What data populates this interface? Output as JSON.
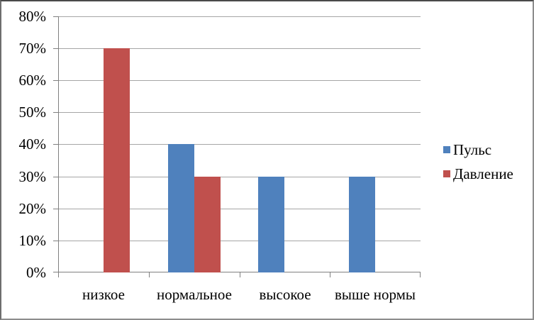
{
  "chart_data": {
    "type": "bar",
    "categories": [
      "низкое",
      "нормальное",
      "высокое",
      "выше нормы"
    ],
    "series": [
      {
        "name": "Пульс",
        "color": "#4F81BD",
        "values": [
          0,
          40,
          30,
          30
        ]
      },
      {
        "name": "Давление",
        "color": "#C0504D",
        "values": [
          70,
          30,
          0,
          0
        ]
      }
    ],
    "title": "",
    "xlabel": "",
    "ylabel": "",
    "ylim": [
      0,
      80
    ],
    "ytick_step": 10,
    "ytick_labels": [
      "0%",
      "10%",
      "20%",
      "30%",
      "40%",
      "50%",
      "60%",
      "70%",
      "80%"
    ],
    "grid": true,
    "legend_position": "right"
  },
  "colors": {
    "background": "#FFFFFF",
    "frame_border": "#8C8C8C",
    "gridline": "#A6A6A6",
    "axis": "#808080",
    "text": "#000000",
    "series_pulse": "#4F81BD",
    "series_pressure": "#C0504D"
  }
}
